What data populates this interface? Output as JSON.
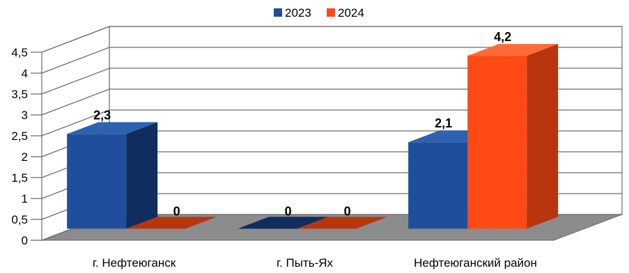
{
  "chart_data": {
    "type": "bar",
    "categories": [
      "г. Нефтеюганск",
      "г. Пыть-Ях",
      "Нефтеюганский район"
    ],
    "series": [
      {
        "name": "2023",
        "values": [
          2.3,
          0,
          2.1
        ],
        "labels": [
          "2,3",
          "0",
          "2,1"
        ]
      },
      {
        "name": "2024",
        "values": [
          0,
          0,
          4.2
        ],
        "labels": [
          "0",
          "0",
          "4,2"
        ]
      }
    ],
    "yticks": [
      "0",
      "0,5",
      "1",
      "1,5",
      "2",
      "2,5",
      "3",
      "3,5",
      "4",
      "4,5"
    ],
    "ylim": [
      0,
      4.5
    ],
    "legend": "top-center",
    "grid": true,
    "colors": {
      "2023": {
        "front": "#1f4f9c",
        "side": "#0f2d5e",
        "top": "#2e62b0"
      },
      "2024": {
        "front": "#ff4a14",
        "side": "#b8350e",
        "top": "#ff6a3a"
      },
      "floor": "#8c8c8c",
      "grid": "#6e6e6e"
    }
  }
}
